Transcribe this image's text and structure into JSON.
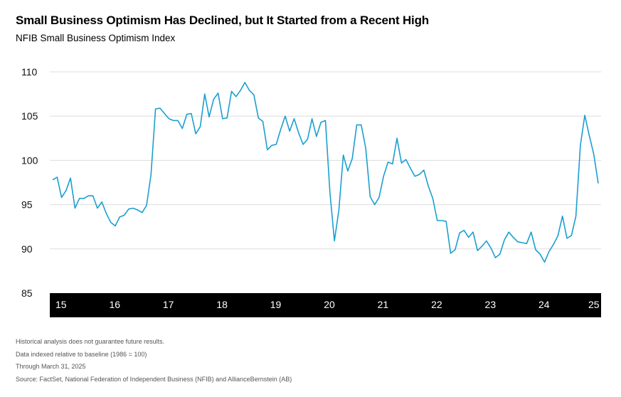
{
  "title": "Small Business Optimism Has Declined, but It Started from a Recent High",
  "subtitle": "NFIB Small Business Optimism Index",
  "notes": [
    "Historical analysis does not guarantee future results.",
    "Data indexed relative to baseline (1986 = 100)",
    "Through March 31, 2025",
    "Source: FactSet, National Federation of Independent Business (NFIB) and AllianceBernstein (AB)"
  ],
  "colors": {
    "line": "#1b9fd0",
    "axis_band": "#000000",
    "grid": "#dddddd"
  },
  "chart_data": {
    "type": "line",
    "title": "Small Business Optimism Has Declined, but It Started from a Recent High",
    "subtitle": "NFIB Small Business Optimism Index",
    "xlabel": "",
    "ylabel": "",
    "ylim": [
      85,
      110
    ],
    "y_ticks": [
      85,
      90,
      95,
      100,
      105,
      110
    ],
    "x_tick_labels": [
      "15",
      "16",
      "17",
      "18",
      "19",
      "20",
      "21",
      "22",
      "23",
      "24",
      "25"
    ],
    "x_range": [
      "2015-01",
      "2025-03"
    ],
    "grid": true,
    "series": [
      {
        "x_start": "2015-01",
        "frequency": "monthly",
        "values": [
          97.8,
          98.1,
          95.8,
          96.6,
          98.0,
          94.6,
          95.7,
          95.7,
          96.0,
          96.0,
          94.6,
          95.3,
          94.0,
          93.0,
          92.6,
          93.6,
          93.8,
          94.5,
          94.6,
          94.4,
          94.1,
          94.9,
          98.4,
          105.8,
          105.9,
          105.3,
          104.7,
          104.5,
          104.5,
          103.6,
          105.2,
          105.3,
          103.0,
          103.8,
          107.5,
          104.9,
          106.9,
          107.6,
          104.7,
          104.8,
          107.8,
          107.2,
          107.9,
          108.8,
          107.9,
          107.4,
          104.8,
          104.4,
          101.2,
          101.7,
          101.8,
          103.5,
          105.0,
          103.3,
          104.7,
          103.1,
          101.8,
          102.4,
          104.7,
          102.7,
          104.3,
          104.5,
          96.4,
          90.9,
          94.4,
          100.6,
          98.8,
          100.2,
          104.0,
          104.0,
          101.4,
          95.9,
          95.0,
          95.8,
          98.2,
          99.8,
          99.6,
          102.5,
          99.7,
          100.1,
          99.1,
          98.2,
          98.4,
          98.9,
          97.1,
          95.7,
          93.2,
          93.2,
          93.1,
          89.5,
          89.9,
          91.8,
          92.1,
          91.3,
          91.9,
          89.8,
          90.3,
          90.9,
          90.1,
          89.0,
          89.4,
          91.0,
          91.9,
          91.3,
          90.8,
          90.7,
          90.6,
          91.9,
          89.9,
          89.4,
          88.5,
          89.7,
          90.5,
          91.5,
          93.7,
          91.2,
          91.5,
          93.7,
          101.7,
          105.1,
          102.8,
          100.7,
          97.4
        ]
      }
    ]
  }
}
